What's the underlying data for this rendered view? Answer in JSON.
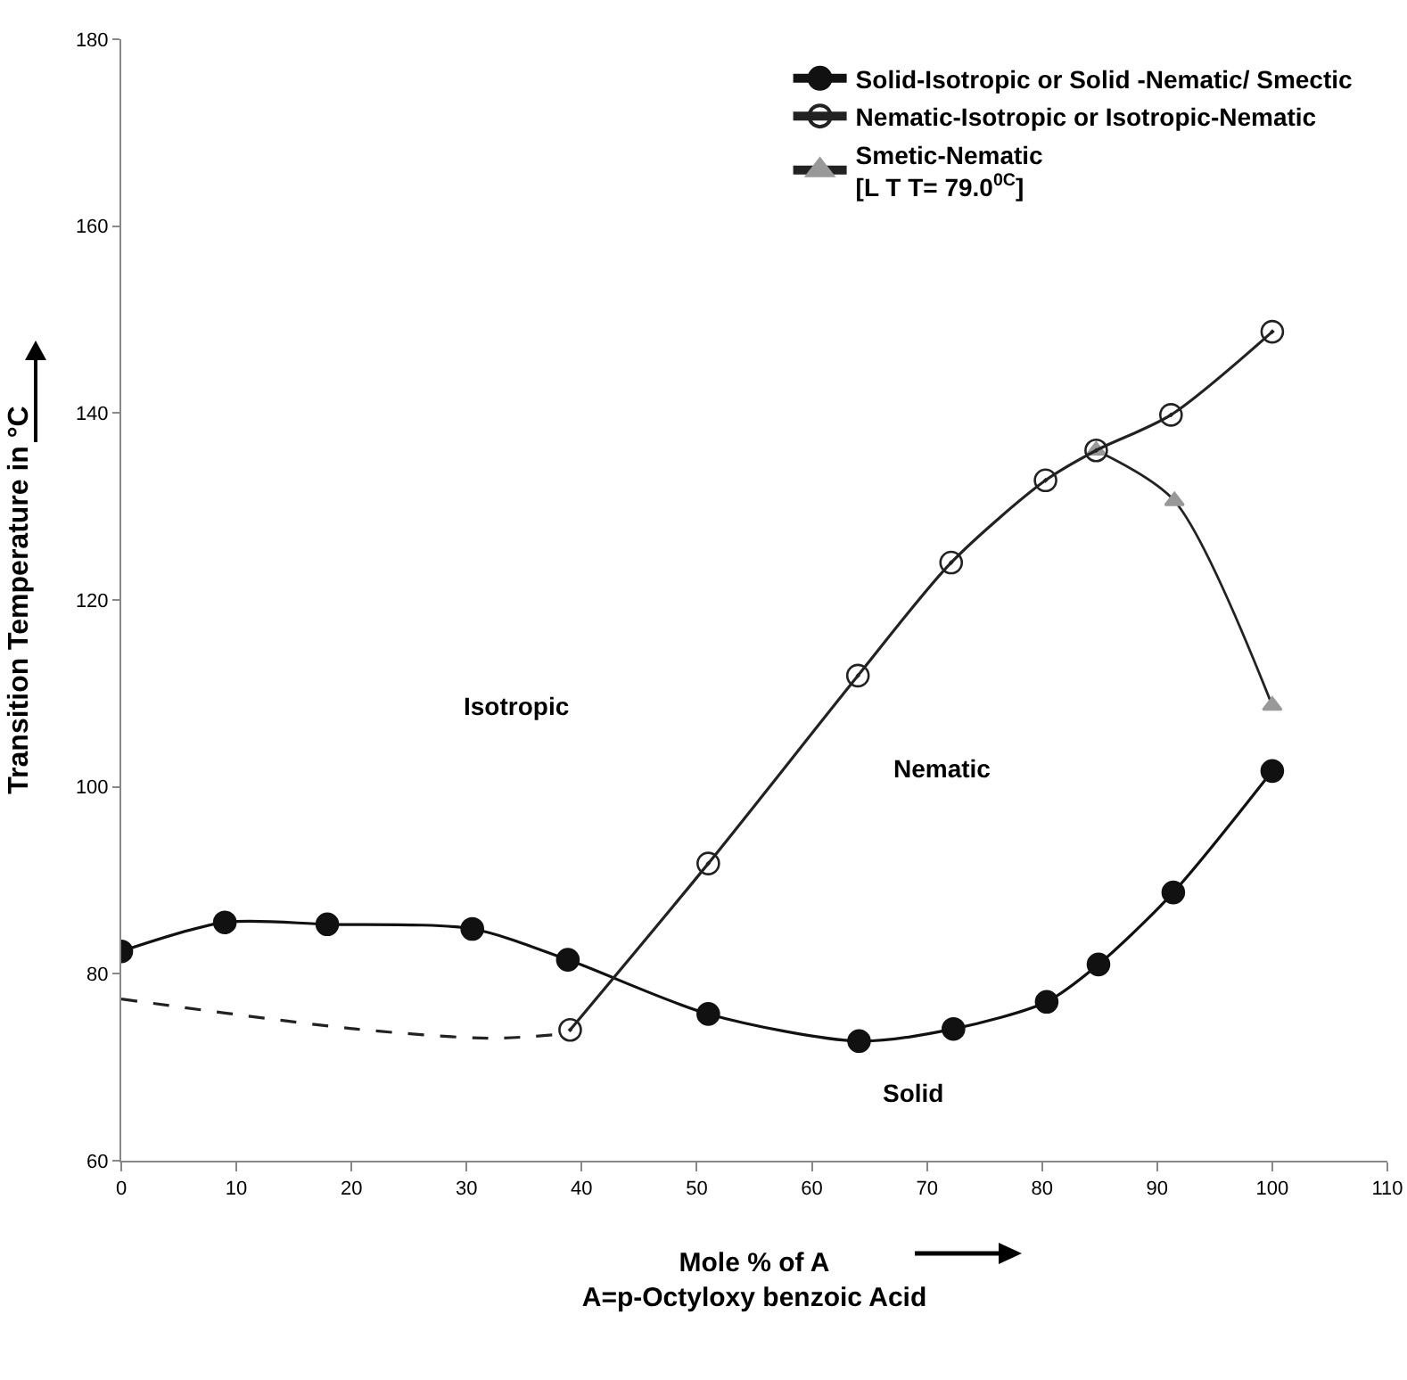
{
  "chart_data": {
    "type": "line",
    "xlabel": "Mole % of A\nA=p-Octyloxy benzoic Acid",
    "ylabel": "Transition Temperature in °C",
    "xlim": [
      0,
      110
    ],
    "xticks": [
      0,
      10,
      20,
      30,
      40,
      50,
      60,
      70,
      80,
      90,
      100,
      110
    ],
    "ylim": [
      60,
      180
    ],
    "yticks": [
      60,
      80,
      100,
      120,
      140,
      160,
      180
    ],
    "grid": false,
    "legend": "top right",
    "series": [
      {
        "name": "Solid-Isotropic or Solid -Nematic/ Smectic",
        "color": "#111111",
        "marker": "circle",
        "line_style": "solid",
        "x": [
          0,
          9.0,
          17.9,
          30.5,
          38.8,
          51.0,
          64.1,
          72.3,
          80.4,
          84.9,
          91.4,
          100
        ],
        "values": [
          82.4,
          85.5,
          85.3,
          84.8,
          81.5,
          75.7,
          72.8,
          74.1,
          77.0,
          81.0,
          88.7,
          101.7
        ]
      },
      {
        "name": "Nematic-Isotropic or Isotropic-Nematic",
        "color": "#222222",
        "marker": "circle-open",
        "line_style": "solid",
        "x": [
          39.0,
          51.0,
          64.0,
          72.1,
          80.3,
          84.7,
          91.2,
          100
        ],
        "values": [
          74.0,
          91.8,
          111.9,
          124.0,
          132.8,
          136.0,
          139.8,
          148.7
        ]
      },
      {
        "name": "Smetic-Nematic\n[L T T= 79.0$^{0C}$]",
        "color": "#999999",
        "marker": "triangle",
        "line_style": "solid",
        "x": [
          84.7,
          91.5,
          100
        ],
        "values": [
          136.0,
          130.6,
          108.7
        ]
      },
      {
        "color": "#222222",
        "marker": "none",
        "line_style": "dashed",
        "x": [
          0,
          20.3,
          32.1,
          38.8
        ],
        "values": [
          77.3,
          74.1,
          73.1,
          73.6
        ]
      }
    ],
    "annotations": [
      "Isotropic",
      "Nematic",
      "Solid"
    ]
  }
}
